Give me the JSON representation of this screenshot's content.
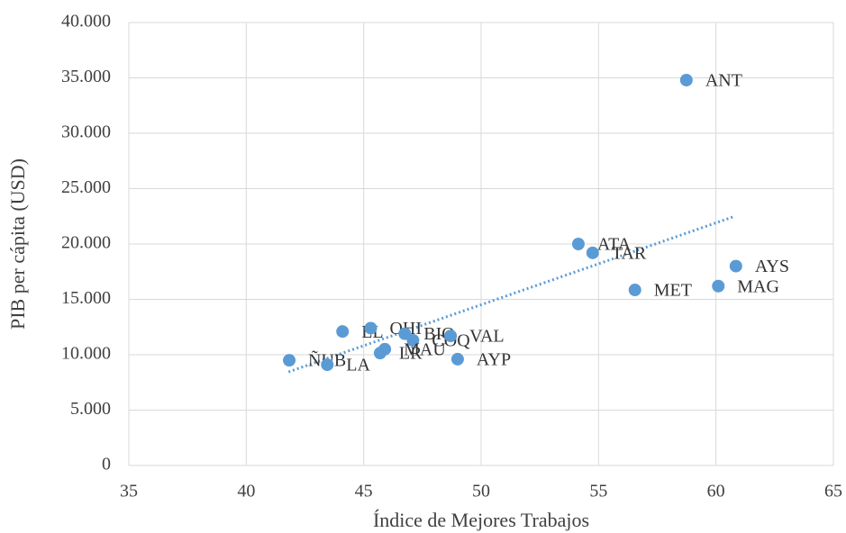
{
  "chart_data": {
    "type": "scatter",
    "xlabel": "Índice de Mejores Trabajos",
    "ylabel": "PIB per cápita (USD)",
    "series": [
      {
        "color": "#5b9bd5",
        "labels": [
          "ANT",
          "ATA",
          "TAR",
          "AYS",
          "MAG",
          "MET",
          "LL",
          "OHI",
          "BIO",
          "COQ",
          "VAL",
          "MAU",
          "LR",
          "AYP",
          "ÑUB",
          "LA"
        ],
        "x": [
          58.74,
          54.14,
          54.75,
          60.85,
          60.1,
          56.55,
          44.1,
          45.3,
          46.75,
          47.1,
          48.7,
          45.9,
          45.7,
          49.0,
          41.83,
          43.45
        ],
        "values": [
          34800,
          20000,
          19200,
          18000,
          16200,
          15850,
          12100,
          12400,
          11900,
          11300,
          11700,
          10500,
          10150,
          9600,
          9500,
          9100
        ]
      }
    ],
    "trendline": {
      "color": "#5b9bd5",
      "x": [
        41.8,
        60.8
      ],
      "y": [
        8450,
        22500
      ]
    },
    "xlim": [
      35,
      65
    ],
    "xticks": [
      35,
      40,
      45,
      50,
      55,
      60,
      65
    ],
    "ylim": [
      0,
      40000
    ],
    "yticks": [
      0,
      {
        "value": 5000,
        "label": "5.000"
      },
      {
        "value": 10000,
        "label": "10.000"
      },
      {
        "value": 15000,
        "label": "15.000"
      },
      {
        "value": 20000,
        "label": "20.000"
      },
      {
        "value": 25000,
        "label": "25.000"
      },
      {
        "value": 30000,
        "label": "30.000"
      },
      {
        "value": 35000,
        "label": "35.000"
      },
      {
        "value": 40000,
        "label": "40.000"
      }
    ],
    "grid": true
  }
}
